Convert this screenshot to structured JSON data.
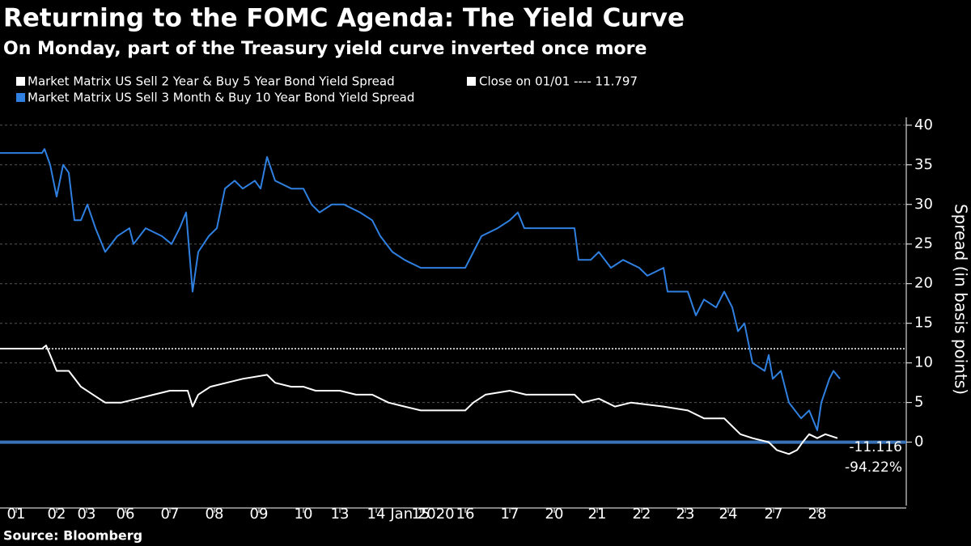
{
  "chart_data": {
    "type": "line",
    "title": "Returning to the FOMC Agenda: The Yield Curve",
    "subtitle": "On Monday, part of the Treasury yield curve inverted once more",
    "source": "Source: Bloomberg",
    "x_label": "Jan 2020",
    "y_label": "Spread (in basis points)",
    "xlim": [
      0,
      112
    ],
    "xticks": [
      {
        "value": 2,
        "label": "01"
      },
      {
        "value": 7,
        "label": "02"
      },
      {
        "value": 10.7,
        "label": "03"
      },
      {
        "value": 15.5,
        "label": "06"
      },
      {
        "value": 21,
        "label": "07"
      },
      {
        "value": 26.5,
        "label": "08"
      },
      {
        "value": 32,
        "label": "09"
      },
      {
        "value": 37.5,
        "label": "10"
      },
      {
        "value": 42,
        "label": "13"
      },
      {
        "value": 46.5,
        "label": "14"
      },
      {
        "value": 52,
        "label": "15"
      },
      {
        "value": 57.5,
        "label": "16"
      },
      {
        "value": 63,
        "label": "17"
      },
      {
        "value": 68.5,
        "label": "20"
      },
      {
        "value": 73.8,
        "label": "21"
      },
      {
        "value": 79.3,
        "label": "22"
      },
      {
        "value": 84.7,
        "label": "23"
      },
      {
        "value": 90,
        "label": "24"
      },
      {
        "value": 95.6,
        "label": "27"
      },
      {
        "value": 101,
        "label": "28"
      }
    ],
    "ylim": [
      -8,
      41
    ],
    "yticks": [
      0,
      5,
      10,
      15,
      20,
      25,
      30,
      35,
      40
    ],
    "grid": true,
    "zero_line_color": "#3a72b8",
    "reference": {
      "label": "Close on 01/01 ---- 11.797",
      "value": 11.797,
      "color": "#ffffff"
    },
    "annotations": [
      "-11.116",
      "-94.22%"
    ],
    "series": [
      {
        "name": "Market Matrix US Sell 2 Year & Buy 5 Year Bond Yield Spread",
        "color": "#ffffff",
        "x": [
          0,
          5.2,
          5.7,
          6.2,
          7,
          8.5,
          10,
          11.5,
          13,
          15,
          17,
          19,
          21,
          23.2,
          23.8,
          24.5,
          26,
          28,
          30,
          33,
          34,
          36,
          37.5,
          39,
          42,
          44,
          46,
          48,
          50,
          52,
          55,
          57.5,
          58.5,
          60,
          63,
          65,
          71,
          72,
          74,
          76,
          78,
          82,
          85,
          87,
          89.5,
          90.5,
          91.5,
          93,
          95,
          96,
          97.5,
          98.5,
          99.2,
          100,
          101,
          102,
          103.5
        ],
        "values": [
          11.8,
          11.8,
          12.2,
          11,
          9,
          9,
          7,
          6,
          5,
          5,
          5.5,
          6,
          6.5,
          6.5,
          4.5,
          6,
          7,
          7.5,
          8,
          8.5,
          7.5,
          7,
          7,
          6.5,
          6.5,
          6,
          6,
          5,
          4.5,
          4,
          4,
          4,
          5,
          6,
          6.5,
          6,
          6,
          5,
          5.5,
          4.5,
          5,
          4.5,
          4,
          3,
          3,
          2,
          1,
          0.5,
          0,
          -1,
          -1.5,
          -1,
          0,
          1,
          0.5,
          1,
          0.5
        ]
      },
      {
        "name": "Market Matrix US Sell 3 Month & Buy 10 Year Bond Yield Spread",
        "color": "#2f80e0",
        "x": [
          0,
          5.2,
          5.5,
          6.2,
          7,
          7.8,
          8.5,
          9.2,
          10,
          10.8,
          11.8,
          13,
          14.5,
          16,
          16.5,
          18,
          20,
          21.2,
          22.2,
          23,
          23.8,
          24.5,
          25.8,
          26.8,
          27.8,
          29,
          30,
          31.5,
          32.2,
          33,
          34,
          36,
          37.5,
          38.5,
          39.5,
          41,
          42.5,
          44.5,
          46,
          47,
          48.5,
          50,
          52,
          54.5,
          57.5,
          58.5,
          59.5,
          61.5,
          63,
          64,
          64.8,
          71,
          71.5,
          73,
          74,
          75.5,
          77,
          79,
          80,
          82,
          82.5,
          85,
          86,
          87,
          88.5,
          89.5,
          90.5,
          91.2,
          92,
          93,
          94.5,
          95,
          95.5,
          96.5,
          97.5,
          99,
          100,
          101,
          101.5,
          102.5,
          103,
          103.8
        ],
        "values": [
          36.5,
          36.5,
          37,
          35,
          31,
          35,
          34,
          28,
          28,
          30,
          27,
          24,
          26,
          27,
          25,
          27,
          26,
          25,
          27,
          29,
          19,
          24,
          26,
          27,
          32,
          33,
          32,
          33,
          32,
          36,
          33,
          32,
          32,
          30,
          29,
          30,
          30,
          29,
          28,
          26,
          24,
          23,
          22,
          22,
          22,
          24,
          26,
          27,
          28,
          29,
          27,
          27,
          23,
          23,
          24,
          22,
          23,
          22,
          21,
          22,
          19,
          19,
          16,
          18,
          17,
          19,
          17,
          14,
          15,
          10,
          9,
          11,
          8,
          9,
          5,
          3,
          4,
          1.5,
          5,
          8,
          9,
          8
        ]
      }
    ]
  }
}
